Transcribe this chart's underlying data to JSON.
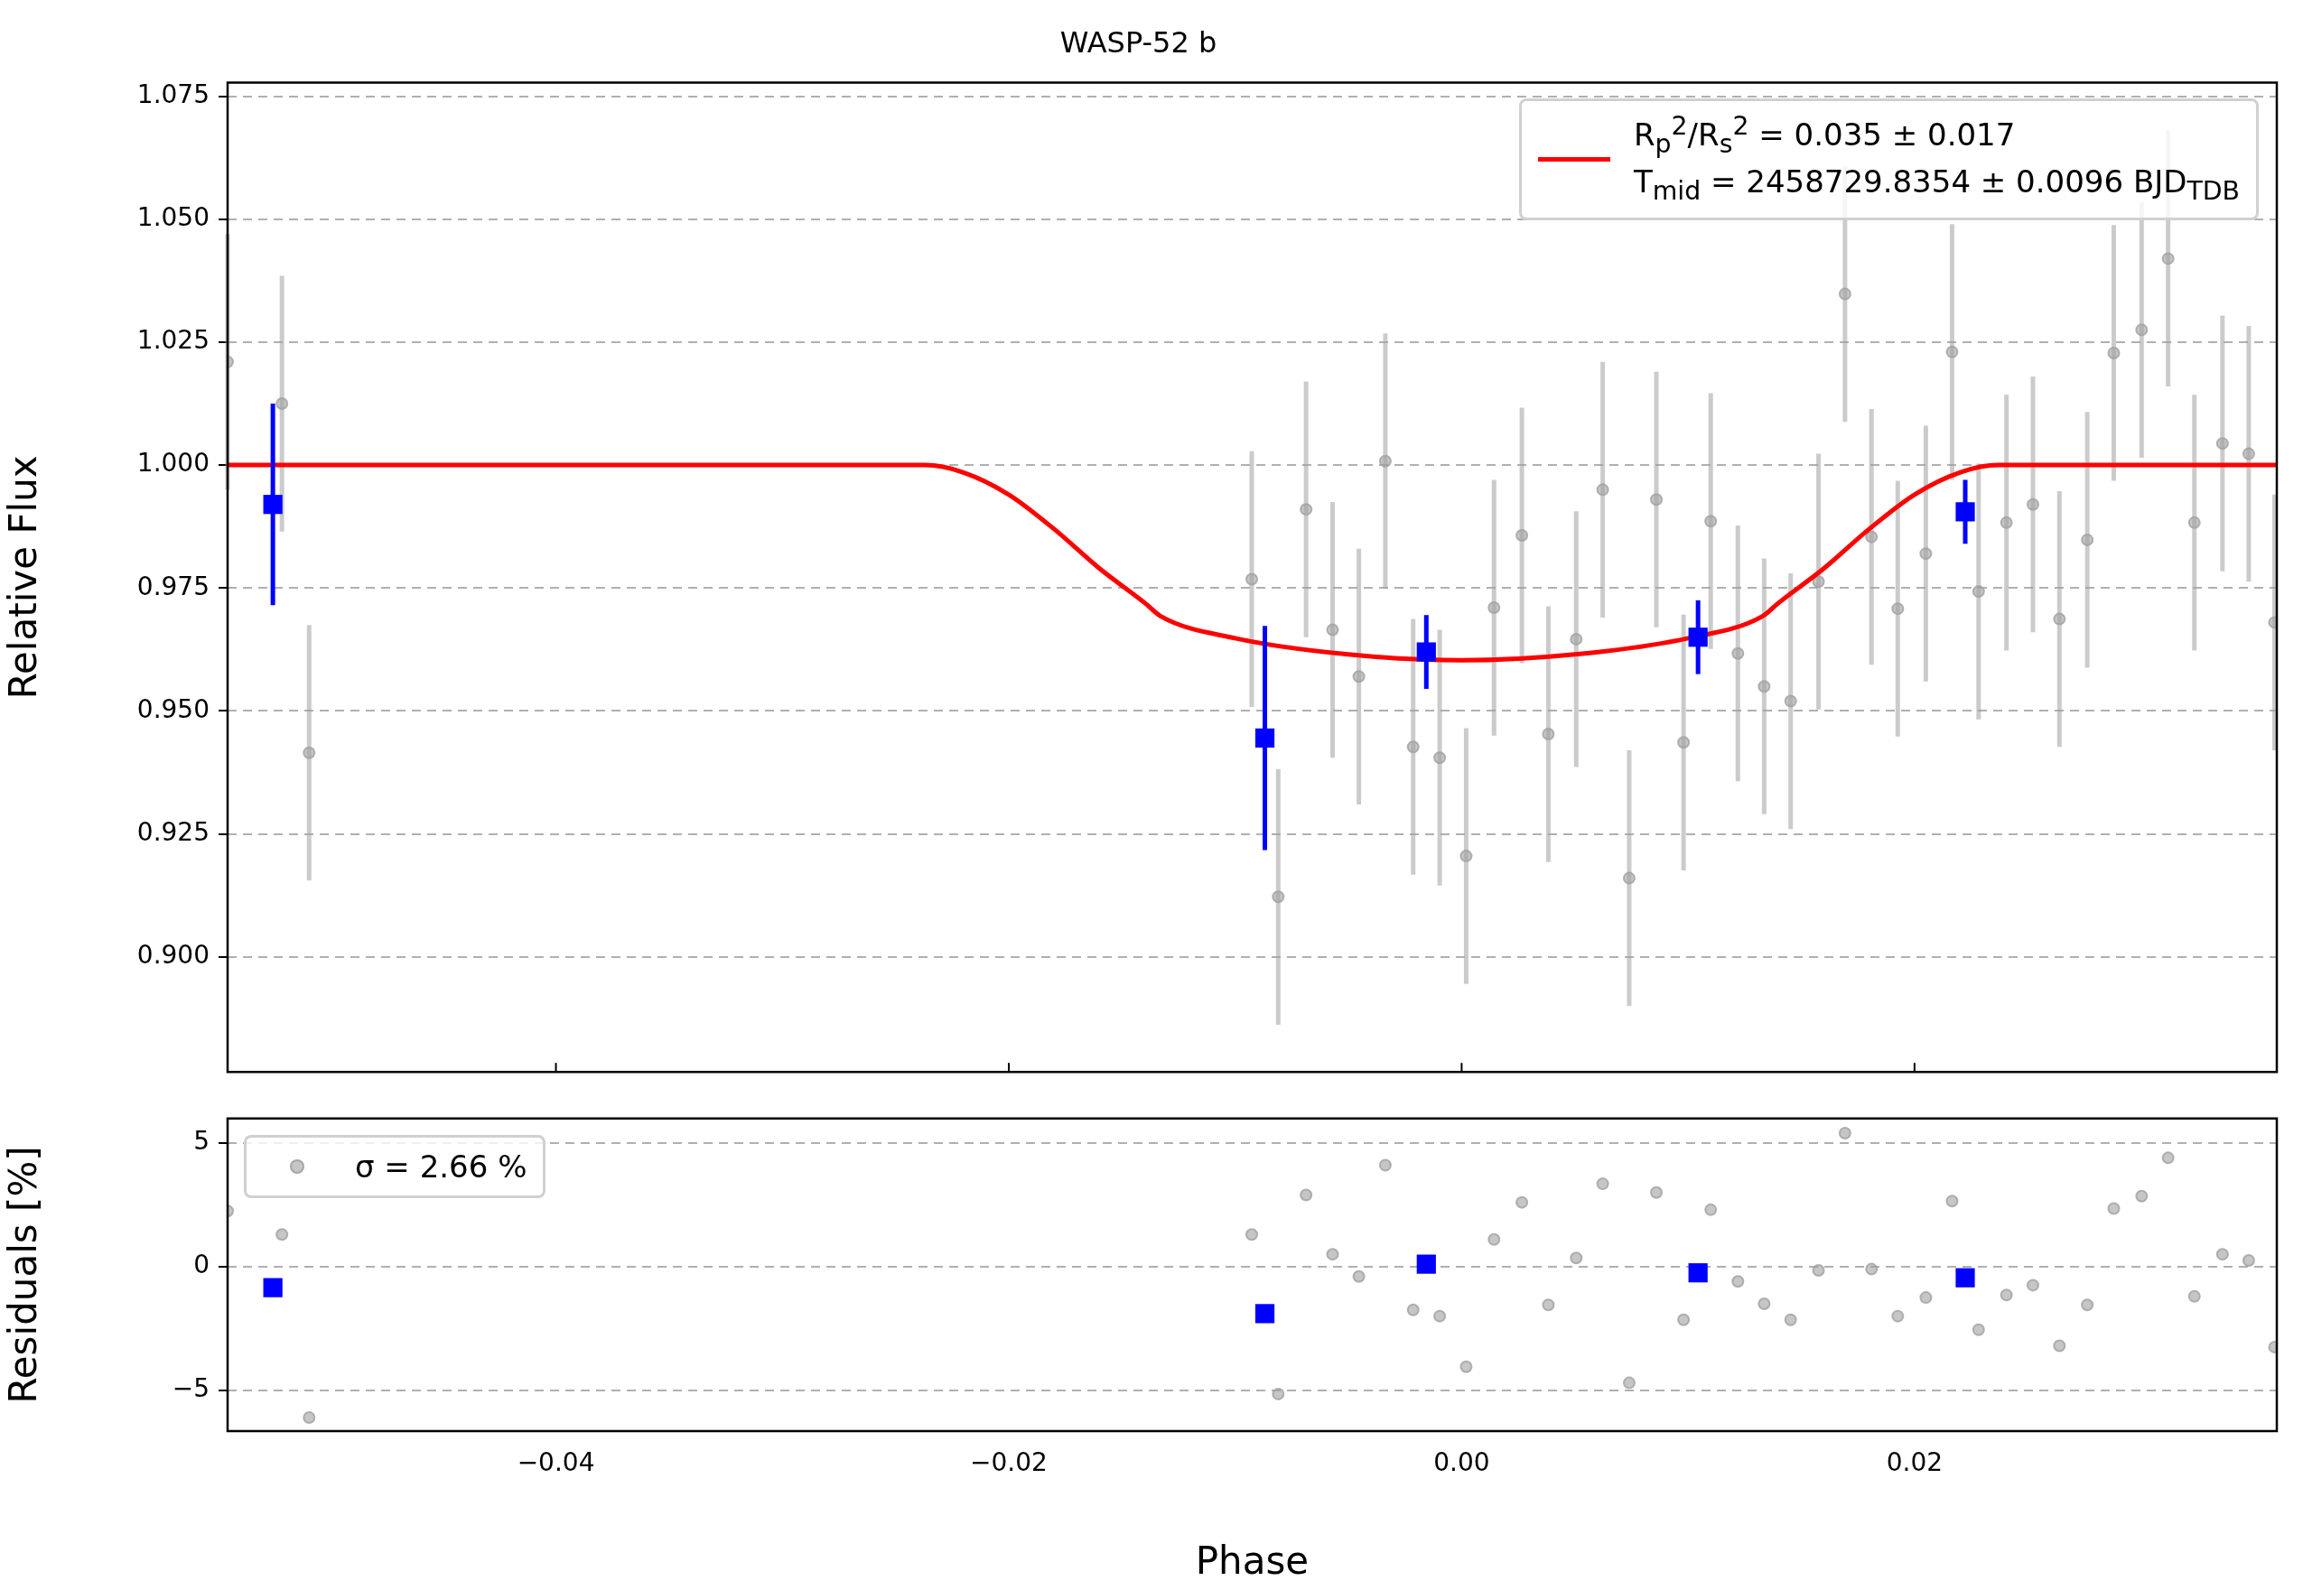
{
  "chart_data": [
    {
      "type": "scatter",
      "title": "WASP-52 b",
      "ylabel": "Relative Flux",
      "xlim": [
        -0.0545,
        0.036
      ],
      "ylim": [
        0.8766,
        1.0778
      ],
      "xticks": [
        -0.04,
        -0.02,
        0,
        0.02
      ],
      "yticks": [
        {
          "value": 0.9,
          "label": "0.900"
        },
        0.925,
        {
          "value": 0.95,
          "label": "0.950"
        },
        0.975,
        {
          "value": 1,
          "label": "1.000"
        },
        1.025,
        {
          "value": 1.05,
          "label": "1.050"
        },
        1.075
      ],
      "tick_labels": "y",
      "grid": "y",
      "legend": "top right",
      "series": [
        {
          "type": "scatter",
          "marker": "circle",
          "color": "#a0a0a0",
          "x": [
            -0.0545,
            -0.0521,
            -0.0509,
            -0.00927,
            -0.0081,
            -0.00687,
            -0.0057,
            -0.00454,
            -0.00337,
            -0.00214,
            -0.00097,
            0.0002,
            0.00143,
            0.00266,
            0.00383,
            0.00506,
            0.00623,
            0.0074,
            0.0086,
            0.0098,
            0.011,
            0.0122,
            0.01336,
            0.01453,
            0.01576,
            0.01693,
            0.0181,
            0.01926,
            0.0205,
            0.02166,
            0.02283,
            0.02406,
            0.02523,
            0.0264,
            0.02763,
            0.0288,
            0.03003,
            0.0312,
            0.03236,
            0.0336,
            0.03476,
            0.0359
          ],
          "values": [
            1.021,
            1.0125,
            0.9415,
            0.9768,
            0.9122,
            0.991,
            0.9665,
            0.957,
            1.0008,
            0.9427,
            0.9405,
            0.9205,
            0.971,
            0.9857,
            0.9453,
            0.9646,
            0.995,
            0.916,
            0.993,
            0.9436,
            0.9886,
            0.9617,
            0.955,
            0.952,
            0.9763,
            1.0348,
            0.9854,
            0.9708,
            0.982,
            1.023,
            0.9743,
            0.9883,
            0.992,
            0.9687,
            0.9848,
            1.0228,
            1.0275,
            1.042,
            0.9883,
            1.0044,
            1.0023,
            0.968
          ],
          "errors": [
            0.026,
            0.026,
            0.026,
            0.026,
            0.026,
            0.026,
            0.026,
            0.026,
            0.026,
            0.026,
            0.026,
            0.026,
            0.026,
            0.026,
            0.026,
            0.026,
            0.026,
            0.026,
            0.026,
            0.026,
            0.026,
            0.026,
            0.026,
            0.026,
            0.026,
            0.026,
            0.026,
            0.026,
            0.026,
            0.026,
            0.026,
            0.026,
            0.026,
            0.026,
            0.026,
            0.026,
            0.026,
            0.026,
            0.026,
            0.026,
            0.026,
            0.026
          ]
        },
        {
          "type": "line",
          "name": "R$_{p}$$^{2}$/R$_{s}$$^{2}$ = 0.035 ± 0.017\nT$_{mid}$ = 2458729.8354 ± 0.0096 BJD$_{TDB}$",
          "color": "#ff0000",
          "marker": "none",
          "x": [
            -0.0545,
            -0.0237,
            -0.022,
            -0.02,
            -0.018,
            -0.016,
            -0.014,
            -0.0133,
            -0.01,
            -0.005,
            0,
            0.005,
            0.01,
            0.0133,
            0.014,
            0.016,
            0.018,
            0.02,
            0.022,
            0.0237,
            0.036
          ],
          "values": [
            1.0,
            1.0,
            0.9985,
            0.994,
            0.987,
            0.979,
            0.972,
            0.9693,
            0.9648,
            0.9615,
            0.9603,
            0.9615,
            0.9648,
            0.9693,
            0.972,
            0.979,
            0.987,
            0.994,
            0.9985,
            1.0,
            1.0
          ]
        },
        {
          "type": "scatter",
          "marker": "square",
          "color": "#0000ff",
          "x": [
            -0.0525,
            -0.00869,
            -0.00156,
            0.01044,
            0.02224
          ],
          "values": [
            0.992,
            0.9445,
            0.962,
            0.965,
            0.9905
          ],
          "errors": [
            0.0205,
            0.0228,
            0.0075,
            0.0075,
            0.0065
          ]
        }
      ]
    },
    {
      "type": "scatter",
      "xlabel": "Phase",
      "ylabel": "Residuals [%]",
      "xlim": [
        -0.0545,
        0.036
      ],
      "ylim": [
        -6.65,
        5.99
      ],
      "xticks": [
        {
          "value": -0.04,
          "label": "−0.04"
        },
        {
          "value": -0.02,
          "label": "−0.02"
        },
        {
          "value": 0,
          "label": "0.00"
        },
        {
          "value": 0.02,
          "label": "0.02"
        }
      ],
      "yticks": [
        {
          "value": -5,
          "label": "−5"
        },
        0,
        5
      ],
      "grid": "y",
      "legend": "top left",
      "series": [
        {
          "type": "scatter",
          "name": "σ = 2.66 %",
          "marker": "circle",
          "color": "#a0a0a0",
          "x": [
            -0.0545,
            -0.0521,
            -0.0509,
            -0.00927,
            -0.0081,
            -0.00687,
            -0.0057,
            -0.00454,
            -0.00337,
            -0.00214,
            -0.00097,
            0.0002,
            0.00143,
            0.00266,
            0.00383,
            0.00506,
            0.00623,
            0.0074,
            0.0086,
            0.0098,
            0.011,
            0.0122,
            0.01336,
            0.01453,
            0.01576,
            0.01693,
            0.0181,
            0.01926,
            0.0205,
            0.02166,
            0.02283,
            0.02406,
            0.02523,
            0.0264,
            0.02763,
            0.0288,
            0.03003,
            0.0312,
            0.03236,
            0.0336,
            0.03476,
            0.0359
          ],
          "values": [
            2.25,
            1.3,
            -6.1,
            1.3,
            -5.15,
            2.9,
            0.5,
            -0.4,
            4.1,
            -1.75,
            -2.0,
            -4.05,
            1.1,
            2.6,
            -1.55,
            0.35,
            3.35,
            -4.7,
            3.0,
            -2.15,
            2.3,
            -0.6,
            -1.5,
            -2.15,
            -0.15,
            5.4,
            -0.1,
            -2.0,
            -1.25,
            2.65,
            -2.55,
            -1.15,
            -0.75,
            -3.2,
            -1.55,
            2.35,
            2.85,
            4.4,
            -1.2,
            0.5,
            0.25,
            -3.25
          ]
        },
        {
          "type": "scatter",
          "marker": "square",
          "color": "#0000ff",
          "x": [
            -0.0525,
            -0.00869,
            -0.00156,
            0.01044,
            0.02224
          ],
          "values": [
            -0.85,
            -1.9,
            0.1,
            -0.25,
            -0.45
          ]
        }
      ]
    }
  ]
}
